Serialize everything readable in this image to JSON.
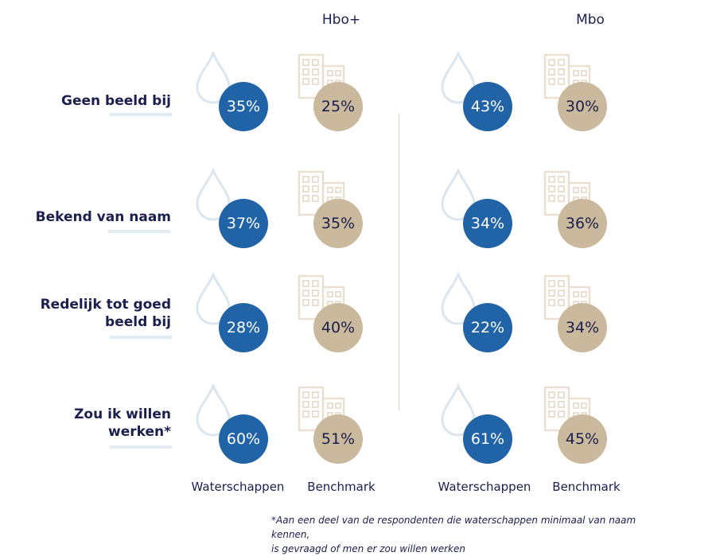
{
  "chart_data": {
    "type": "table",
    "groups": [
      "Hbo+",
      "Mbo"
    ],
    "series_labels": [
      "Waterschappen",
      "Benchmark"
    ],
    "rows": [
      {
        "label": "Geen beeld bij",
        "values": {
          "Hbo+": [
            "35%",
            "25%"
          ],
          "Mbo": [
            "43%",
            "30%"
          ]
        }
      },
      {
        "label": "Bekend van naam",
        "values": {
          "Hbo+": [
            "37%",
            "35%"
          ],
          "Mbo": [
            "34%",
            "36%"
          ]
        }
      },
      {
        "label": "Redelijk tot goed beeld bij",
        "values": {
          "Hbo+": [
            "28%",
            "40%"
          ],
          "Mbo": [
            "22%",
            "34%"
          ]
        }
      },
      {
        "label": "Zou ik willen werken*",
        "values": {
          "Hbo+": [
            "60%",
            "51%"
          ],
          "Mbo": [
            "61%",
            "45%"
          ]
        }
      }
    ]
  },
  "headers": {
    "hbo": "Hbo+",
    "mbo": "Mbo"
  },
  "rows": [
    {
      "line1": "Geen beeld bij",
      "line2": ""
    },
    {
      "line1": "Bekend van naam",
      "line2": ""
    },
    {
      "line1": "Redelijk tot goed",
      "line2": "beeld bij"
    },
    {
      "line1": "Zou ik willen",
      "line2": "werken*"
    }
  ],
  "values": {
    "hbo": [
      [
        "35%",
        "25%"
      ],
      [
        "37%",
        "35%"
      ],
      [
        "28%",
        "40%"
      ],
      [
        "60%",
        "51%"
      ]
    ],
    "mbo": [
      [
        "43%",
        "30%"
      ],
      [
        "34%",
        "36%"
      ],
      [
        "22%",
        "34%"
      ],
      [
        "61%",
        "45%"
      ]
    ]
  },
  "footer": {
    "hbo_water": "Waterschappen",
    "hbo_bench": "Benchmark",
    "mbo_water": "Waterschappen",
    "mbo_bench": "Benchmark"
  },
  "footnote": {
    "line1": "*Aan een deel van de respondenten die waterschappen minimaal van naam kennen,",
    "line2": "is gevraagd of men er zou willen werken"
  },
  "colors": {
    "water": "#2063a6",
    "bench": "#cbb99d",
    "text": "#1a1f4e",
    "line": "#e4ecf3"
  },
  "icons": {
    "water": "water-drop-icon",
    "bench": "building-icon"
  }
}
